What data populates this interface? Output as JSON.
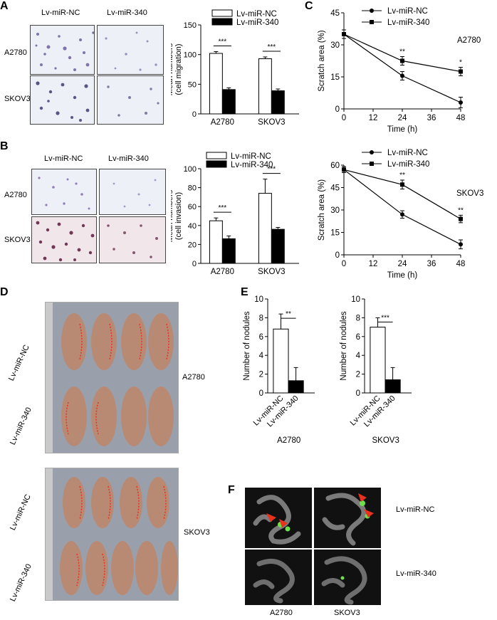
{
  "panels": {
    "A": "A",
    "B": "B",
    "C": "C",
    "D": "D",
    "E": "E",
    "F": "F"
  },
  "micrographs": {
    "A": {
      "col_labels": [
        "Lv-miR-NC",
        "Lv-miR-340"
      ],
      "row_labels": [
        "A2780",
        "SKOV3"
      ]
    },
    "B": {
      "col_labels": [
        "Lv-miR-NC",
        "Lv-miR-340"
      ],
      "row_labels": [
        "A2780",
        "SKOV3"
      ]
    }
  },
  "mice_photos": {
    "row_labels_top": [
      "Lv-miR-NC",
      "Lv-miR-340"
    ],
    "row_labels_bottom": [
      "Lv-miR-NC",
      "Lv-miR-340"
    ],
    "cell_line_top": "A2780",
    "cell_line_bottom": "SKOV3"
  },
  "organ_photos": {
    "row_labels": [
      "Lv-miR-NC",
      "Lv-miR-340"
    ],
    "col_labels": [
      "A2780",
      "SKOV3"
    ]
  },
  "colors": {
    "black": "#000000",
    "white": "#ffffff",
    "arrow": "#e8321e",
    "fluor": "#6fe04a"
  },
  "chart_data": [
    {
      "id": "A-bar",
      "type": "bar",
      "categories": [
        "A2780",
        "SKOV3"
      ],
      "series": [
        {
          "name": "Lv-miR-NC",
          "values": [
            102,
            93
          ],
          "errors": [
            3,
            3
          ]
        },
        {
          "name": "Lv-miR-340",
          "values": [
            41,
            39
          ],
          "errors": [
            3,
            3
          ]
        }
      ],
      "ylabel": "Mean numbers\n(cell migration)",
      "ylim": [
        0,
        150
      ],
      "yticks": [
        0,
        50,
        100,
        150
      ],
      "significance": [
        "***",
        "***"
      ],
      "legend": "top-right"
    },
    {
      "id": "B-bar",
      "type": "bar",
      "categories": [
        "A2780",
        "SKOV3"
      ],
      "series": [
        {
          "name": "Lv-miR-NC",
          "values": [
            45,
            74
          ],
          "errors": [
            3,
            15
          ]
        },
        {
          "name": "Lv-miR-340",
          "values": [
            26,
            36
          ],
          "errors": [
            3,
            2
          ]
        }
      ],
      "ylabel": "Mean numbers\n(cell invasion)",
      "ylim": [
        0,
        100
      ],
      "yticks": [
        0,
        20,
        40,
        60,
        80,
        100
      ],
      "significance": [
        "***",
        "***"
      ],
      "legend": "top"
    },
    {
      "id": "C-line-A2780",
      "type": "line",
      "x": [
        0,
        24,
        48
      ],
      "series": [
        {
          "name": "Lv-miR-NC",
          "values": [
            35,
            15.5,
            3
          ],
          "errors": [
            2,
            2,
            2.5
          ],
          "marker": "circle"
        },
        {
          "name": "Lv-miR-340",
          "values": [
            35,
            22.5,
            17.5
          ],
          "errors": [
            2,
            2,
            2
          ],
          "marker": "square"
        }
      ],
      "xlabel": "Time (h)",
      "ylabel": "Scratch area (%)",
      "xticks": [
        0,
        12,
        24,
        36,
        48
      ],
      "yticks": [
        0,
        15,
        30,
        45
      ],
      "xlim": [
        0,
        48
      ],
      "ylim": [
        0,
        45
      ],
      "significance": [
        "",
        "**",
        "*"
      ],
      "annotation": "A2780",
      "legend": "top"
    },
    {
      "id": "C-line-SKOV3",
      "type": "line",
      "x": [
        0,
        24,
        48
      ],
      "series": [
        {
          "name": "Lv-miR-NC",
          "values": [
            57,
            27,
            7
          ],
          "errors": [
            2,
            2.5,
            3
          ],
          "marker": "circle"
        },
        {
          "name": "Lv-miR-340",
          "values": [
            57,
            47,
            24
          ],
          "errors": [
            2,
            3,
            2.5
          ],
          "marker": "square"
        }
      ],
      "xlabel": "Time (h)",
      "ylabel": "Scratch area (%)",
      "xticks": [
        0,
        12,
        24,
        36,
        48
      ],
      "yticks": [
        0,
        15,
        30,
        45,
        60
      ],
      "xlim": [
        0,
        48
      ],
      "ylim": [
        0,
        60
      ],
      "significance": [
        "",
        "**",
        "**"
      ],
      "annotation": "SKOV3",
      "legend": "top"
    },
    {
      "id": "E-bar-A2780",
      "type": "bar",
      "categories": [
        "Lv-miR-NC",
        "Lv-miR-340"
      ],
      "values": [
        6.8,
        1.3
      ],
      "errors": [
        1.6,
        1.4
      ],
      "fills": [
        "white",
        "black"
      ],
      "ylabel": "Number of nodules",
      "ylim": [
        0,
        10
      ],
      "yticks": [
        0,
        2,
        4,
        6,
        8,
        10
      ],
      "significance": "**",
      "group_label": "A2780"
    },
    {
      "id": "E-bar-SKOV3",
      "type": "bar",
      "categories": [
        "Lv-miR-NC",
        "Lv-miR-340"
      ],
      "values": [
        7.0,
        1.4
      ],
      "errors": [
        1.0,
        1.3
      ],
      "fills": [
        "white",
        "black"
      ],
      "ylabel": "Number of nodules",
      "ylim": [
        0,
        10
      ],
      "yticks": [
        0,
        2,
        4,
        6,
        8,
        10
      ],
      "significance": "***",
      "group_label": "SKOV3"
    }
  ]
}
